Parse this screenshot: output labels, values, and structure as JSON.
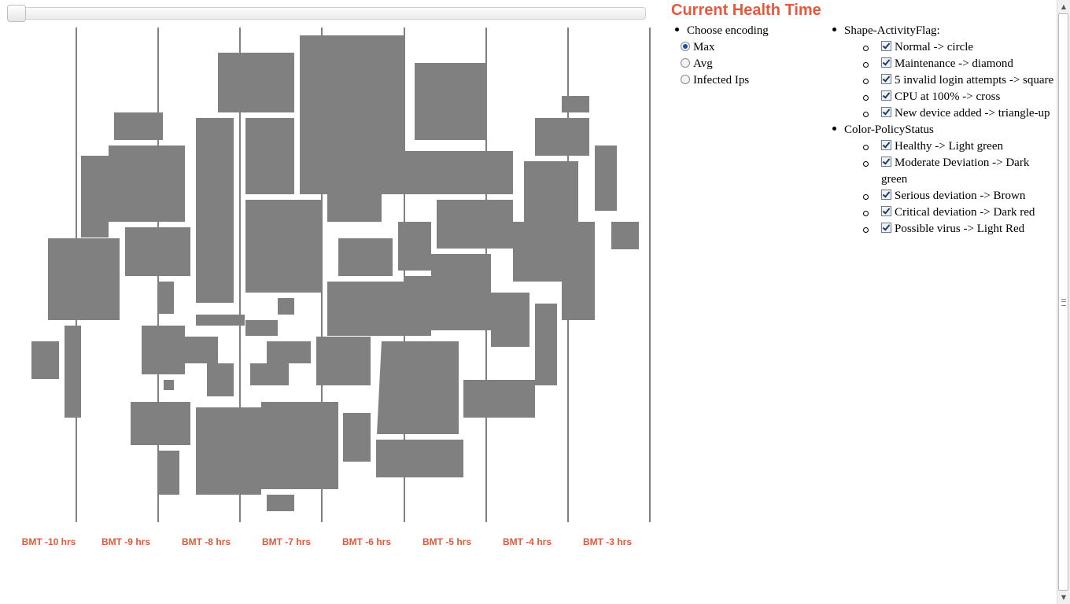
{
  "slider": {
    "position": 0
  },
  "title": "Current Health Time",
  "encoding": {
    "heading": "Choose encoding",
    "options": [
      {
        "label": "Max",
        "checked": true
      },
      {
        "label": "Avg",
        "checked": false
      },
      {
        "label": "Infected Ips",
        "checked": false
      }
    ]
  },
  "legend": {
    "shape": {
      "heading": "Shape-ActivityFlag:",
      "items": [
        {
          "label": "Normal -> circle",
          "checked": true
        },
        {
          "label": "Maintenance -> diamond",
          "checked": true
        },
        {
          "label": "5 invalid login attempts -> square",
          "checked": true
        },
        {
          "label": "CPU at 100% -> cross",
          "checked": true
        },
        {
          "label": "New device added -> triangle-up",
          "checked": true
        }
      ]
    },
    "color": {
      "heading": "Color-PolicyStatus",
      "items": [
        {
          "label": "Healthy -> Light green",
          "checked": true
        },
        {
          "label": "Moderate Deviation -> Dark green",
          "checked": true
        },
        {
          "label": "Serious deviation -> Brown",
          "checked": true
        },
        {
          "label": "Critical deviation -> Dark red",
          "checked": true
        },
        {
          "label": "Possible virus -> Light Red",
          "checked": true
        }
      ]
    }
  },
  "timeline": {
    "labels": [
      "BMT -10 hrs",
      "BMT -9 hrs",
      "BMT -8 hrs",
      "BMT -7 hrs",
      "BMT -6 hrs",
      "BMT -5 hrs",
      "BMT -4 hrs",
      "BMT -3 hrs"
    ]
  },
  "colors": {
    "title": "#e8583c",
    "tick_label": "#e05a3a",
    "cell": "#808080",
    "radio_selected": "#1c4f9c"
  }
}
